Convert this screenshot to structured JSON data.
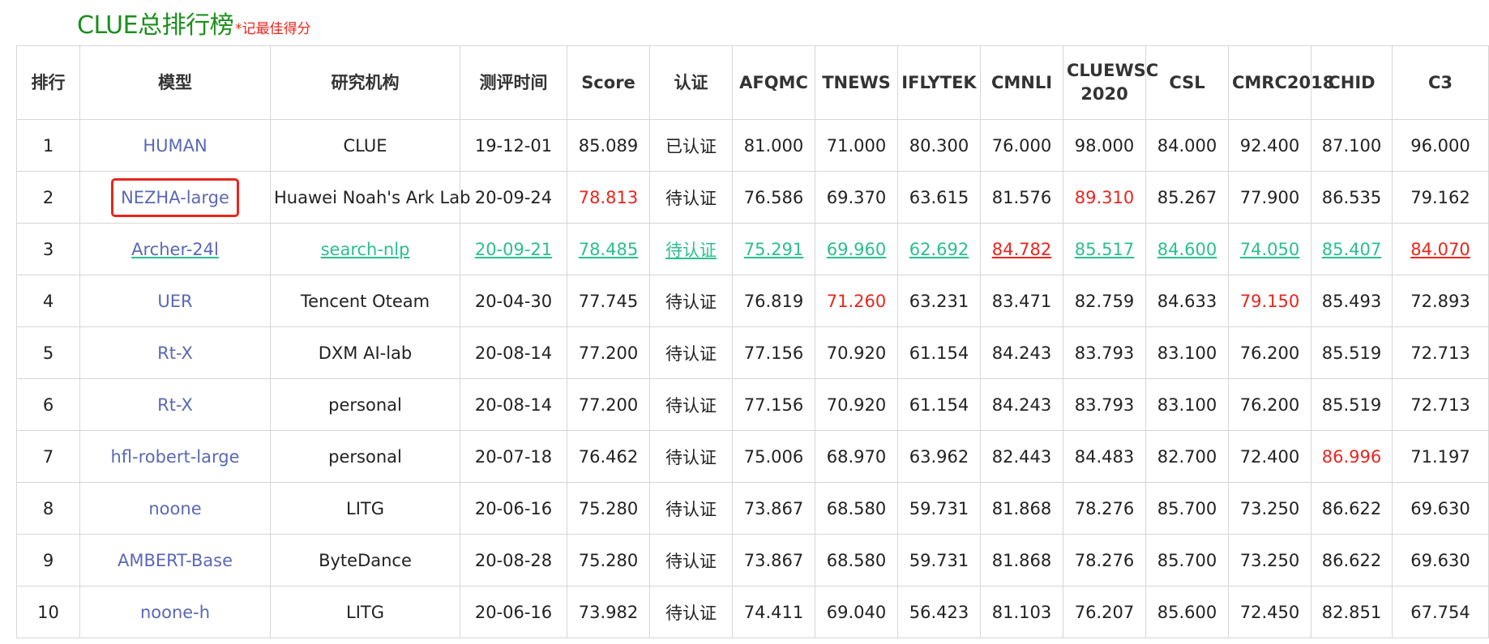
{
  "title": "CLUE总排行榜",
  "subtitle": "*记最佳得分",
  "colors": {
    "title_green": "#1b8f1b",
    "highlight_red": "#e8261e",
    "link_blue": "#5b68b4",
    "teal_link": "#2bbf8e"
  },
  "columns": [
    "排行",
    "模型",
    "研究机构",
    "测评时间",
    "Score",
    "认证",
    "AFQMC",
    "TNEWS",
    "IFLYTEK",
    "CMNLI",
    "CLUEWSC 2020",
    "CSL",
    "CMRC2018",
    "CHID",
    "C3"
  ],
  "rows": [
    {
      "rank": "1",
      "model": "HUMAN",
      "org": "CLUE",
      "date": "19-12-01",
      "score": "85.089",
      "cert": "已认证",
      "afqmc": "81.000",
      "tnews": "71.000",
      "iflytek": "80.300",
      "cmnli": "76.000",
      "cluewsc": "98.000",
      "csl": "84.000",
      "cmrc": "92.400",
      "chid": "87.100",
      "c3": "96.000",
      "red": [],
      "boxed": false,
      "linked": false
    },
    {
      "rank": "2",
      "model": "NEZHA-large",
      "org": "Huawei Noah's Ark Lab",
      "date": "20-09-24",
      "score": "78.813",
      "cert": "待认证",
      "afqmc": "76.586",
      "tnews": "69.370",
      "iflytek": "63.615",
      "cmnli": "81.576",
      "cluewsc": "89.310",
      "csl": "85.267",
      "cmrc": "77.900",
      "chid": "86.535",
      "c3": "79.162",
      "red": [
        "score",
        "cluewsc"
      ],
      "boxed": true,
      "linked": false
    },
    {
      "rank": "3",
      "model": "Archer-24l",
      "org": "search-nlp",
      "date": "20-09-21",
      "score": "78.485",
      "cert": "待认证",
      "afqmc": "75.291",
      "tnews": "69.960",
      "iflytek": "62.692",
      "cmnli": "84.782",
      "cluewsc": "85.517",
      "csl": "84.600",
      "cmrc": "74.050",
      "chid": "85.407",
      "c3": "84.070",
      "red": [
        "cmnli",
        "c3"
      ],
      "boxed": false,
      "linked": true
    },
    {
      "rank": "4",
      "model": "UER",
      "org": "Tencent Oteam",
      "date": "20-04-30",
      "score": "77.745",
      "cert": "待认证",
      "afqmc": "76.819",
      "tnews": "71.260",
      "iflytek": "63.231",
      "cmnli": "83.471",
      "cluewsc": "82.759",
      "csl": "84.633",
      "cmrc": "79.150",
      "chid": "85.493",
      "c3": "72.893",
      "red": [
        "tnews",
        "cmrc"
      ],
      "boxed": false,
      "linked": false
    },
    {
      "rank": "5",
      "model": "Rt-X",
      "org": "DXM AI-lab",
      "date": "20-08-14",
      "score": "77.200",
      "cert": "待认证",
      "afqmc": "77.156",
      "tnews": "70.920",
      "iflytek": "61.154",
      "cmnli": "84.243",
      "cluewsc": "83.793",
      "csl": "83.100",
      "cmrc": "76.200",
      "chid": "85.519",
      "c3": "72.713",
      "red": [],
      "boxed": false,
      "linked": false
    },
    {
      "rank": "6",
      "model": "Rt-X",
      "org": "personal",
      "date": "20-08-14",
      "score": "77.200",
      "cert": "待认证",
      "afqmc": "77.156",
      "tnews": "70.920",
      "iflytek": "61.154",
      "cmnli": "84.243",
      "cluewsc": "83.793",
      "csl": "83.100",
      "cmrc": "76.200",
      "chid": "85.519",
      "c3": "72.713",
      "red": [],
      "boxed": false,
      "linked": false
    },
    {
      "rank": "7",
      "model": "hfl-robert-large",
      "org": "personal",
      "date": "20-07-18",
      "score": "76.462",
      "cert": "待认证",
      "afqmc": "75.006",
      "tnews": "68.970",
      "iflytek": "63.962",
      "cmnli": "82.443",
      "cluewsc": "84.483",
      "csl": "82.700",
      "cmrc": "72.400",
      "chid": "86.996",
      "c3": "71.197",
      "red": [
        "chid"
      ],
      "boxed": false,
      "linked": false
    },
    {
      "rank": "8",
      "model": "noone",
      "org": "LITG",
      "date": "20-06-16",
      "score": "75.280",
      "cert": "待认证",
      "afqmc": "73.867",
      "tnews": "68.580",
      "iflytek": "59.731",
      "cmnli": "81.868",
      "cluewsc": "78.276",
      "csl": "85.700",
      "cmrc": "73.250",
      "chid": "86.622",
      "c3": "69.630",
      "red": [],
      "boxed": false,
      "linked": false
    },
    {
      "rank": "9",
      "model": "AMBERT-Base",
      "org": "ByteDance",
      "date": "20-08-28",
      "score": "75.280",
      "cert": "待认证",
      "afqmc": "73.867",
      "tnews": "68.580",
      "iflytek": "59.731",
      "cmnli": "81.868",
      "cluewsc": "78.276",
      "csl": "85.700",
      "cmrc": "73.250",
      "chid": "86.622",
      "c3": "69.630",
      "red": [],
      "boxed": false,
      "linked": false
    },
    {
      "rank": "10",
      "model": "noone-h",
      "org": "LITG",
      "date": "20-06-16",
      "score": "73.982",
      "cert": "待认证",
      "afqmc": "74.411",
      "tnews": "69.040",
      "iflytek": "56.423",
      "cmnli": "81.103",
      "cluewsc": "76.207",
      "csl": "85.600",
      "cmrc": "72.450",
      "chid": "82.851",
      "c3": "67.754",
      "red": [],
      "boxed": false,
      "linked": false
    }
  ]
}
